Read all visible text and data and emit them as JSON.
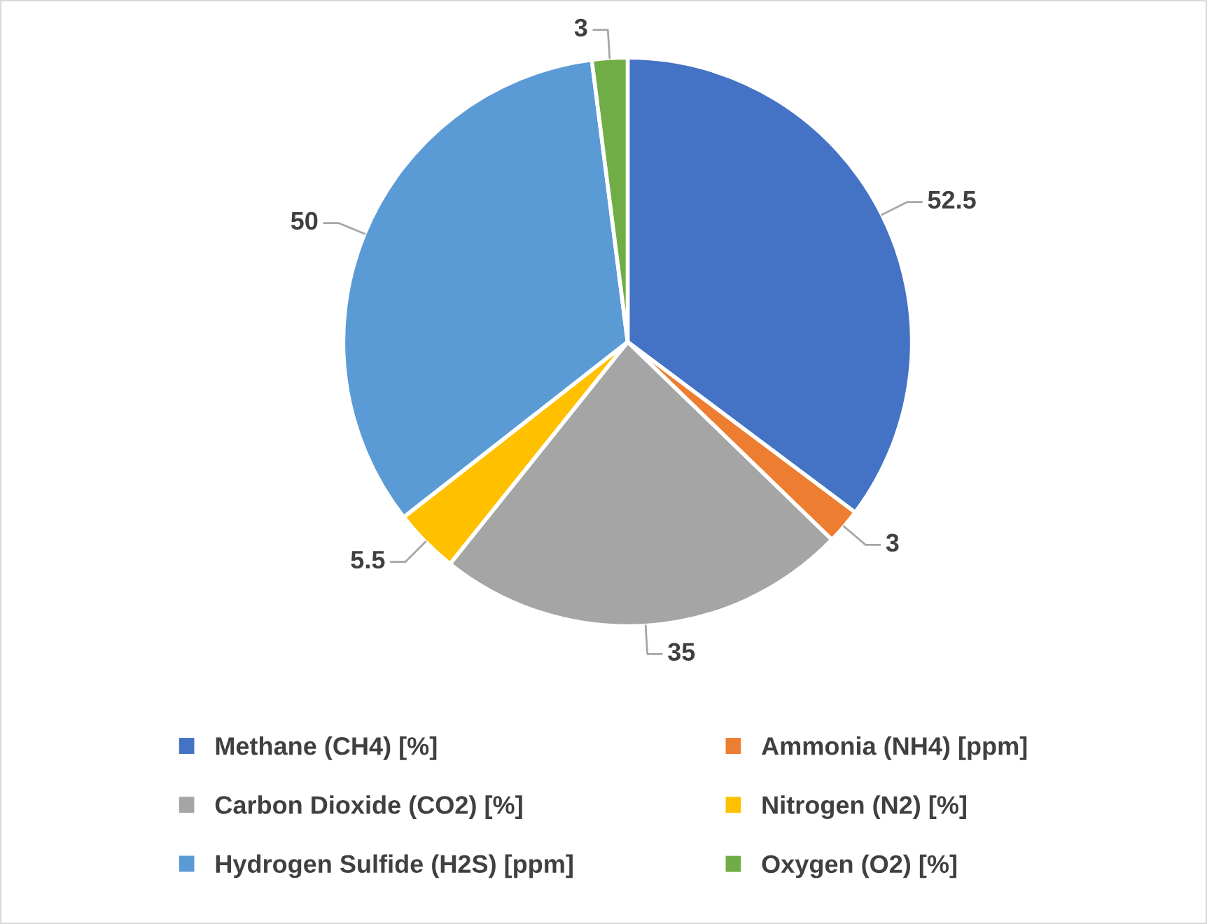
{
  "chart_data": {
    "type": "pie",
    "categories": [
      "Methane (CH4) [%]",
      "Ammonia (NH4) [ppm]",
      "Carbon Dioxide (CO2) [%]",
      "Nitrogen (N2) [%]",
      "Hydrogen Sulfide (H2S) [ppm]",
      "Oxygen (O2) [%]"
    ],
    "values": [
      52.5,
      3,
      35,
      5.5,
      50,
      3
    ],
    "colors": [
      "#4472c4",
      "#ed7d31",
      "#a5a5a5",
      "#ffc000",
      "#5b9bd5",
      "#70ad47"
    ],
    "data_labels": true,
    "legend": "bottom"
  }
}
